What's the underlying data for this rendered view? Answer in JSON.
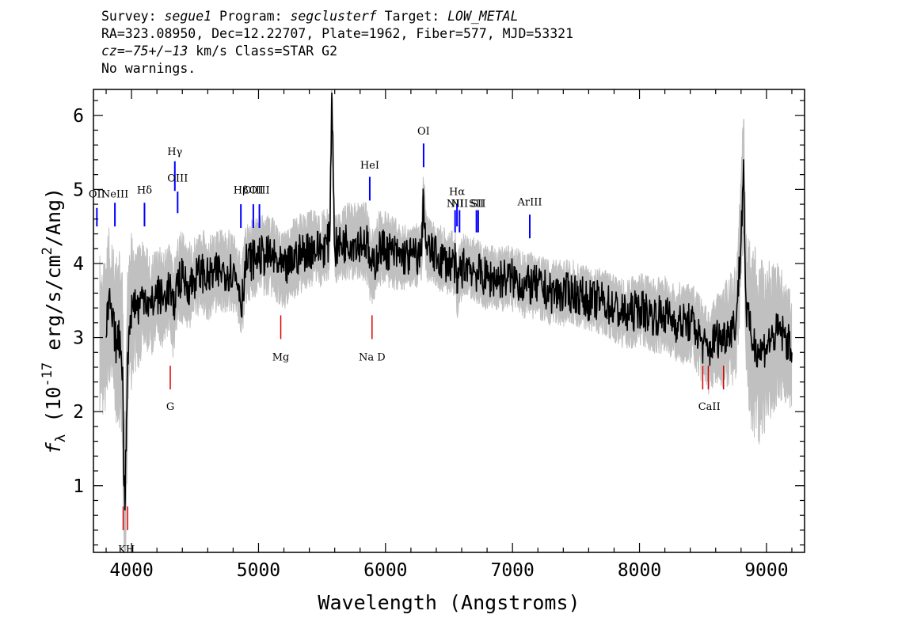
{
  "header": {
    "line1": {
      "survey_label": "Survey: ",
      "survey": "segue1",
      "program_label": " Program: ",
      "program": "segclusterf",
      "target_label": " Target: ",
      "target": "LOW_METAL"
    },
    "line2": "RA=323.08950, Dec=12.22707, Plate=1962, Fiber=577, MJD=53321",
    "line3": {
      "cz": "cz=−75+/−13",
      "rest": " km/s Class=STAR G2"
    },
    "line4": "No warnings."
  },
  "colors": {
    "flux": "#000000",
    "error_band": "#c0c0c0",
    "emission": "#0000ff",
    "absorption": "#dd0000",
    "axes": "#000000"
  },
  "chart_data": {
    "type": "line",
    "xlabel": "Wavelength (Angstroms)",
    "ylabel": "f_λ (10^-17 erg/s/cm^2/Ang)",
    "xlim": [
      3700,
      9300
    ],
    "ylim": [
      0.1,
      6.35
    ],
    "x_ticks": [
      4000,
      5000,
      6000,
      7000,
      8000,
      9000
    ],
    "y_ticks": [
      1,
      2,
      3,
      4,
      5,
      6
    ],
    "grid": false,
    "legend": "none",
    "series": [
      {
        "role": "flux",
        "x": [
          3800,
          3820,
          3850,
          3880,
          3910,
          3930,
          3940,
          3950,
          3960,
          3970,
          3990,
          4020,
          4050,
          4100,
          4150,
          4200,
          4250,
          4300,
          4330,
          4350,
          4380,
          4400,
          4450,
          4500,
          4550,
          4600,
          4700,
          4800,
          4850,
          4861,
          4900,
          5000,
          5100,
          5200,
          5300,
          5400,
          5500,
          5560,
          5577,
          5600,
          5700,
          5800,
          5850,
          5890,
          5950,
          6000,
          6100,
          6200,
          6280,
          6300,
          6320,
          6400,
          6500,
          6550,
          6563,
          6580,
          6650,
          6700,
          6800,
          6900,
          7000,
          7100,
          7200,
          7300,
          7400,
          7500,
          7600,
          7700,
          7800,
          7900,
          8000,
          8100,
          8200,
          8300,
          8400,
          8450,
          8500,
          8542,
          8600,
          8662,
          8700,
          8760,
          8800,
          8820,
          8827,
          8840,
          8880,
          8950,
          9000,
          9050,
          9100,
          9150,
          9200
        ],
        "y": [
          3.0,
          3.5,
          3.2,
          2.9,
          3.0,
          2.6,
          1.0,
          0.8,
          1.9,
          2.8,
          3.3,
          3.5,
          3.4,
          3.6,
          3.4,
          3.6,
          3.5,
          3.7,
          3.3,
          3.7,
          3.8,
          3.8,
          3.7,
          3.8,
          3.9,
          3.8,
          3.9,
          3.9,
          3.7,
          3.4,
          4.0,
          4.1,
          4.1,
          3.9,
          4.1,
          4.2,
          4.2,
          4.3,
          6.3,
          4.2,
          4.3,
          4.3,
          4.3,
          3.9,
          4.2,
          4.2,
          4.1,
          4.1,
          4.1,
          4.9,
          4.2,
          4.1,
          4.0,
          4.0,
          3.6,
          3.9,
          4.0,
          3.9,
          3.8,
          3.8,
          3.8,
          3.7,
          3.7,
          3.6,
          3.6,
          3.6,
          3.5,
          3.5,
          3.4,
          3.3,
          3.4,
          3.3,
          3.3,
          3.2,
          3.2,
          3.1,
          2.9,
          2.8,
          3.0,
          3.0,
          3.1,
          3.2,
          4.3,
          5.4,
          4.4,
          3.4,
          3.0,
          2.8,
          2.9,
          3.0,
          3.1,
          3.0,
          2.8
        ]
      },
      {
        "role": "error_band",
        "x": [
          3750,
          3850,
          3950,
          4100,
          4300,
          4500,
          4800,
          5000,
          5300,
          5600,
          5900,
          6200,
          6500,
          6800,
          7100,
          7400,
          7700,
          8000,
          8300,
          8600,
          8800,
          8900,
          9050,
          9200
        ],
        "upper": [
          4.4,
          4.3,
          4.1,
          4.2,
          4.3,
          4.4,
          4.5,
          4.6,
          4.7,
          4.7,
          4.8,
          4.6,
          4.5,
          4.4,
          4.3,
          4.2,
          4.1,
          4.0,
          3.9,
          3.8,
          4.2,
          4.5,
          4.3,
          4.0
        ],
        "lower": [
          2.2,
          2.0,
          1.6,
          2.8,
          3.0,
          3.2,
          3.4,
          3.5,
          3.6,
          3.7,
          3.7,
          3.7,
          3.6,
          3.5,
          3.4,
          3.3,
          3.2,
          3.0,
          2.8,
          2.6,
          2.4,
          1.8,
          2.2,
          2.3
        ]
      }
    ],
    "annotations": {
      "emission": [
        {
          "label": "OII",
          "wave": 3727,
          "y0": 4.5,
          "y1": 4.75,
          "ly": 4.85
        },
        {
          "label": "NeIII",
          "wave": 3869,
          "y0": 4.5,
          "y1": 4.82,
          "ly": 4.85
        },
        {
          "label": "Hδ",
          "wave": 4102,
          "y0": 4.5,
          "y1": 4.82,
          "ly": 4.9
        },
        {
          "label": "Hγ",
          "wave": 4341,
          "y0": 4.98,
          "y1": 5.38,
          "ly": 5.42
        },
        {
          "label": "OIII",
          "wave": 4363,
          "y0": 4.68,
          "y1": 4.97,
          "ly": 5.06
        },
        {
          "label": "Hβ",
          "wave": 4861,
          "y0": 4.48,
          "y1": 4.8,
          "ly": 4.9
        },
        {
          "label": "OIII",
          "wave": 4959,
          "y0": 4.48,
          "y1": 4.8,
          "ly": 4.9
        },
        {
          "label": "OIII",
          "wave": 5007,
          "y0": 4.48,
          "y1": 4.8,
          "ly": 4.9
        },
        {
          "label": "HeI",
          "wave": 5876,
          "y0": 4.85,
          "y1": 5.17,
          "ly": 5.24
        },
        {
          "label": "OI",
          "wave": 6300,
          "y0": 5.3,
          "y1": 5.62,
          "ly": 5.7
        },
        {
          "label": "NII",
          "wave": 6548,
          "y0": 4.42,
          "y1": 4.72,
          "ly": 4.72
        },
        {
          "label": "Hα",
          "wave": 6563,
          "y0": 4.5,
          "y1": 4.8,
          "ly": 4.88
        },
        {
          "label": "NII",
          "wave": 6583,
          "y0": 4.42,
          "y1": 4.72,
          "ly": 4.72
        },
        {
          "label": "SII",
          "wave": 6716,
          "y0": 4.42,
          "y1": 4.72,
          "ly": 4.72
        },
        {
          "label": "SII",
          "wave": 6730,
          "y0": 4.42,
          "y1": 4.72,
          "ly": 4.72
        },
        {
          "label": "ArIII",
          "wave": 7136,
          "y0": 4.34,
          "y1": 4.66,
          "ly": 4.74
        }
      ],
      "absorption": [
        {
          "label": "KH",
          "wave": 3934,
          "y0": 0.4,
          "y1": 0.72,
          "ly": 0.2,
          "lx": 3960,
          "show": true
        },
        {
          "label": "KH",
          "wave": 3969,
          "y0": 0.4,
          "y1": 0.72,
          "ly": 0.2,
          "lx": 3960,
          "show": false
        },
        {
          "label": "G",
          "wave": 4305,
          "y0": 2.3,
          "y1": 2.62,
          "ly": 2.13,
          "lx": 4305,
          "show": true
        },
        {
          "label": "Mg",
          "wave": 5175,
          "y0": 2.98,
          "y1": 3.3,
          "ly": 2.8,
          "lx": 5175,
          "show": true
        },
        {
          "label": "Na D",
          "wave": 5894,
          "y0": 2.98,
          "y1": 3.3,
          "ly": 2.8,
          "lx": 5894,
          "show": true
        },
        {
          "label": "CaII",
          "wave": 8498,
          "y0": 2.3,
          "y1": 2.62,
          "ly": 2.13,
          "lx": 8550,
          "show": true
        },
        {
          "label": "CaII",
          "wave": 8542,
          "y0": 2.3,
          "y1": 2.62,
          "ly": 2.13,
          "lx": 8550,
          "show": false
        },
        {
          "label": "CaII",
          "wave": 8662,
          "y0": 2.3,
          "y1": 2.62,
          "ly": 2.13,
          "lx": 8550,
          "show": false
        }
      ]
    }
  }
}
